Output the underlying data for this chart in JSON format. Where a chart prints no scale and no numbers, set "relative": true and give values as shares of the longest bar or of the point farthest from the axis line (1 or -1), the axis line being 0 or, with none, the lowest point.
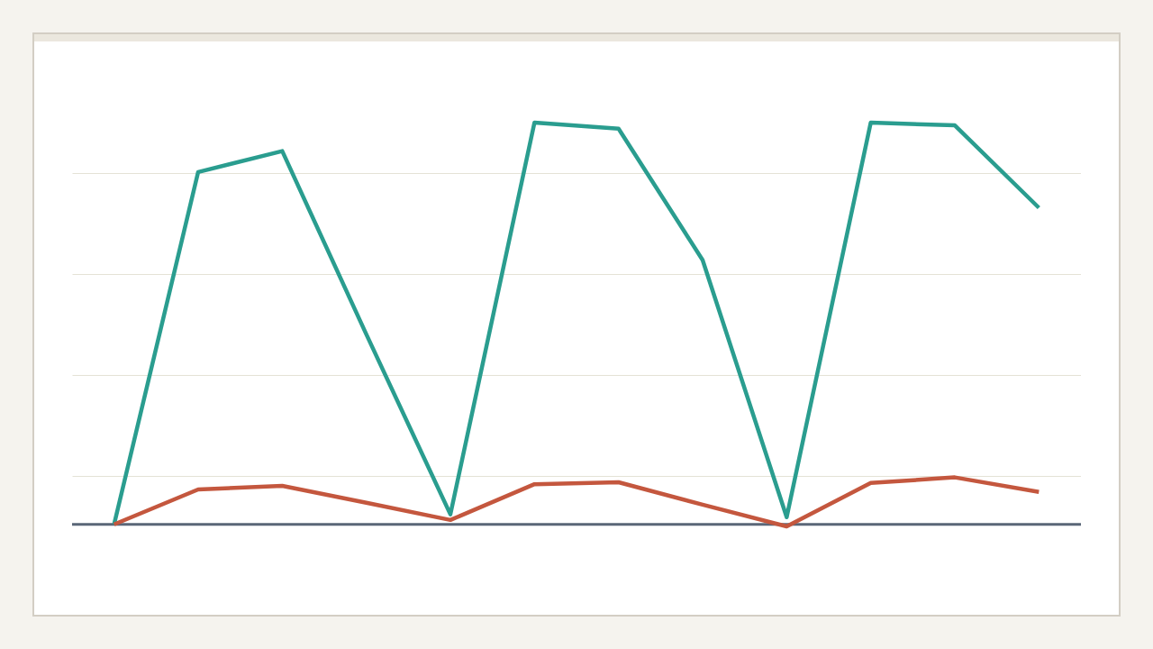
{
  "chart_data": {
    "type": "line",
    "relative": true,
    "categories": [
      null,
      null,
      null,
      null,
      null,
      null,
      null,
      null,
      null,
      null,
      null,
      null
    ],
    "series": [
      {
        "color": "#2a9d8f",
        "values": [
          0,
          0.877,
          0.929,
          0.473,
          0.025,
          1.0,
          0.985,
          0.658,
          0.018,
          1.0,
          0.993,
          0.788
        ]
      },
      {
        "color": "#c4573e",
        "values": [
          0,
          0.087,
          0.096,
          0.054,
          0.011,
          0.1,
          0.105,
          0.049,
          -0.005,
          0.103,
          0.117,
          0.081
        ]
      }
    ],
    "grid": "y",
    "line_style": "solid"
  }
}
